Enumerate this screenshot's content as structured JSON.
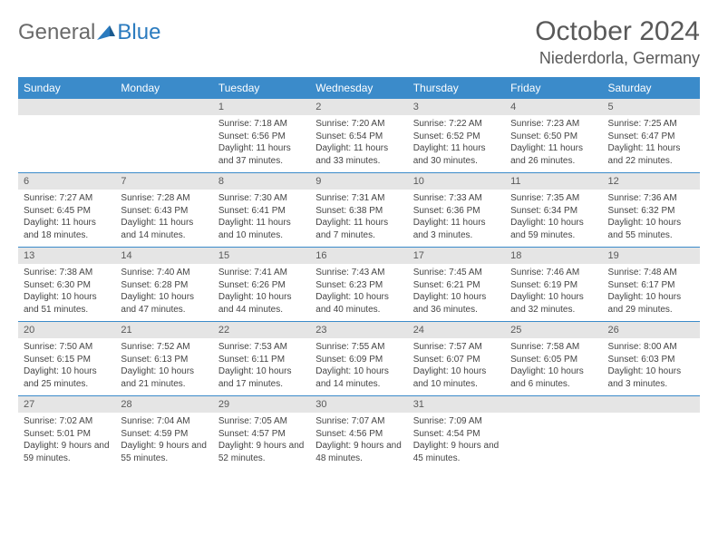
{
  "brand": {
    "word1": "General",
    "word2": "Blue"
  },
  "title": "October 2024",
  "location": "Niederdorla, Germany",
  "colors": {
    "header_bg": "#3b8bca",
    "header_text": "#ffffff",
    "daynum_bg": "#e5e5e5",
    "body_text": "#444444",
    "title_text": "#595959"
  },
  "day_names": [
    "Sunday",
    "Monday",
    "Tuesday",
    "Wednesday",
    "Thursday",
    "Friday",
    "Saturday"
  ],
  "weeks": [
    [
      {
        "n": "",
        "sr": "",
        "ss": "",
        "dl": ""
      },
      {
        "n": "",
        "sr": "",
        "ss": "",
        "dl": ""
      },
      {
        "n": "1",
        "sr": "Sunrise: 7:18 AM",
        "ss": "Sunset: 6:56 PM",
        "dl": "Daylight: 11 hours and 37 minutes."
      },
      {
        "n": "2",
        "sr": "Sunrise: 7:20 AM",
        "ss": "Sunset: 6:54 PM",
        "dl": "Daylight: 11 hours and 33 minutes."
      },
      {
        "n": "3",
        "sr": "Sunrise: 7:22 AM",
        "ss": "Sunset: 6:52 PM",
        "dl": "Daylight: 11 hours and 30 minutes."
      },
      {
        "n": "4",
        "sr": "Sunrise: 7:23 AM",
        "ss": "Sunset: 6:50 PM",
        "dl": "Daylight: 11 hours and 26 minutes."
      },
      {
        "n": "5",
        "sr": "Sunrise: 7:25 AM",
        "ss": "Sunset: 6:47 PM",
        "dl": "Daylight: 11 hours and 22 minutes."
      }
    ],
    [
      {
        "n": "6",
        "sr": "Sunrise: 7:27 AM",
        "ss": "Sunset: 6:45 PM",
        "dl": "Daylight: 11 hours and 18 minutes."
      },
      {
        "n": "7",
        "sr": "Sunrise: 7:28 AM",
        "ss": "Sunset: 6:43 PM",
        "dl": "Daylight: 11 hours and 14 minutes."
      },
      {
        "n": "8",
        "sr": "Sunrise: 7:30 AM",
        "ss": "Sunset: 6:41 PM",
        "dl": "Daylight: 11 hours and 10 minutes."
      },
      {
        "n": "9",
        "sr": "Sunrise: 7:31 AM",
        "ss": "Sunset: 6:38 PM",
        "dl": "Daylight: 11 hours and 7 minutes."
      },
      {
        "n": "10",
        "sr": "Sunrise: 7:33 AM",
        "ss": "Sunset: 6:36 PM",
        "dl": "Daylight: 11 hours and 3 minutes."
      },
      {
        "n": "11",
        "sr": "Sunrise: 7:35 AM",
        "ss": "Sunset: 6:34 PM",
        "dl": "Daylight: 10 hours and 59 minutes."
      },
      {
        "n": "12",
        "sr": "Sunrise: 7:36 AM",
        "ss": "Sunset: 6:32 PM",
        "dl": "Daylight: 10 hours and 55 minutes."
      }
    ],
    [
      {
        "n": "13",
        "sr": "Sunrise: 7:38 AM",
        "ss": "Sunset: 6:30 PM",
        "dl": "Daylight: 10 hours and 51 minutes."
      },
      {
        "n": "14",
        "sr": "Sunrise: 7:40 AM",
        "ss": "Sunset: 6:28 PM",
        "dl": "Daylight: 10 hours and 47 minutes."
      },
      {
        "n": "15",
        "sr": "Sunrise: 7:41 AM",
        "ss": "Sunset: 6:26 PM",
        "dl": "Daylight: 10 hours and 44 minutes."
      },
      {
        "n": "16",
        "sr": "Sunrise: 7:43 AM",
        "ss": "Sunset: 6:23 PM",
        "dl": "Daylight: 10 hours and 40 minutes."
      },
      {
        "n": "17",
        "sr": "Sunrise: 7:45 AM",
        "ss": "Sunset: 6:21 PM",
        "dl": "Daylight: 10 hours and 36 minutes."
      },
      {
        "n": "18",
        "sr": "Sunrise: 7:46 AM",
        "ss": "Sunset: 6:19 PM",
        "dl": "Daylight: 10 hours and 32 minutes."
      },
      {
        "n": "19",
        "sr": "Sunrise: 7:48 AM",
        "ss": "Sunset: 6:17 PM",
        "dl": "Daylight: 10 hours and 29 minutes."
      }
    ],
    [
      {
        "n": "20",
        "sr": "Sunrise: 7:50 AM",
        "ss": "Sunset: 6:15 PM",
        "dl": "Daylight: 10 hours and 25 minutes."
      },
      {
        "n": "21",
        "sr": "Sunrise: 7:52 AM",
        "ss": "Sunset: 6:13 PM",
        "dl": "Daylight: 10 hours and 21 minutes."
      },
      {
        "n": "22",
        "sr": "Sunrise: 7:53 AM",
        "ss": "Sunset: 6:11 PM",
        "dl": "Daylight: 10 hours and 17 minutes."
      },
      {
        "n": "23",
        "sr": "Sunrise: 7:55 AM",
        "ss": "Sunset: 6:09 PM",
        "dl": "Daylight: 10 hours and 14 minutes."
      },
      {
        "n": "24",
        "sr": "Sunrise: 7:57 AM",
        "ss": "Sunset: 6:07 PM",
        "dl": "Daylight: 10 hours and 10 minutes."
      },
      {
        "n": "25",
        "sr": "Sunrise: 7:58 AM",
        "ss": "Sunset: 6:05 PM",
        "dl": "Daylight: 10 hours and 6 minutes."
      },
      {
        "n": "26",
        "sr": "Sunrise: 8:00 AM",
        "ss": "Sunset: 6:03 PM",
        "dl": "Daylight: 10 hours and 3 minutes."
      }
    ],
    [
      {
        "n": "27",
        "sr": "Sunrise: 7:02 AM",
        "ss": "Sunset: 5:01 PM",
        "dl": "Daylight: 9 hours and 59 minutes."
      },
      {
        "n": "28",
        "sr": "Sunrise: 7:04 AM",
        "ss": "Sunset: 4:59 PM",
        "dl": "Daylight: 9 hours and 55 minutes."
      },
      {
        "n": "29",
        "sr": "Sunrise: 7:05 AM",
        "ss": "Sunset: 4:57 PM",
        "dl": "Daylight: 9 hours and 52 minutes."
      },
      {
        "n": "30",
        "sr": "Sunrise: 7:07 AM",
        "ss": "Sunset: 4:56 PM",
        "dl": "Daylight: 9 hours and 48 minutes."
      },
      {
        "n": "31",
        "sr": "Sunrise: 7:09 AM",
        "ss": "Sunset: 4:54 PM",
        "dl": "Daylight: 9 hours and 45 minutes."
      },
      {
        "n": "",
        "sr": "",
        "ss": "",
        "dl": ""
      },
      {
        "n": "",
        "sr": "",
        "ss": "",
        "dl": ""
      }
    ]
  ]
}
